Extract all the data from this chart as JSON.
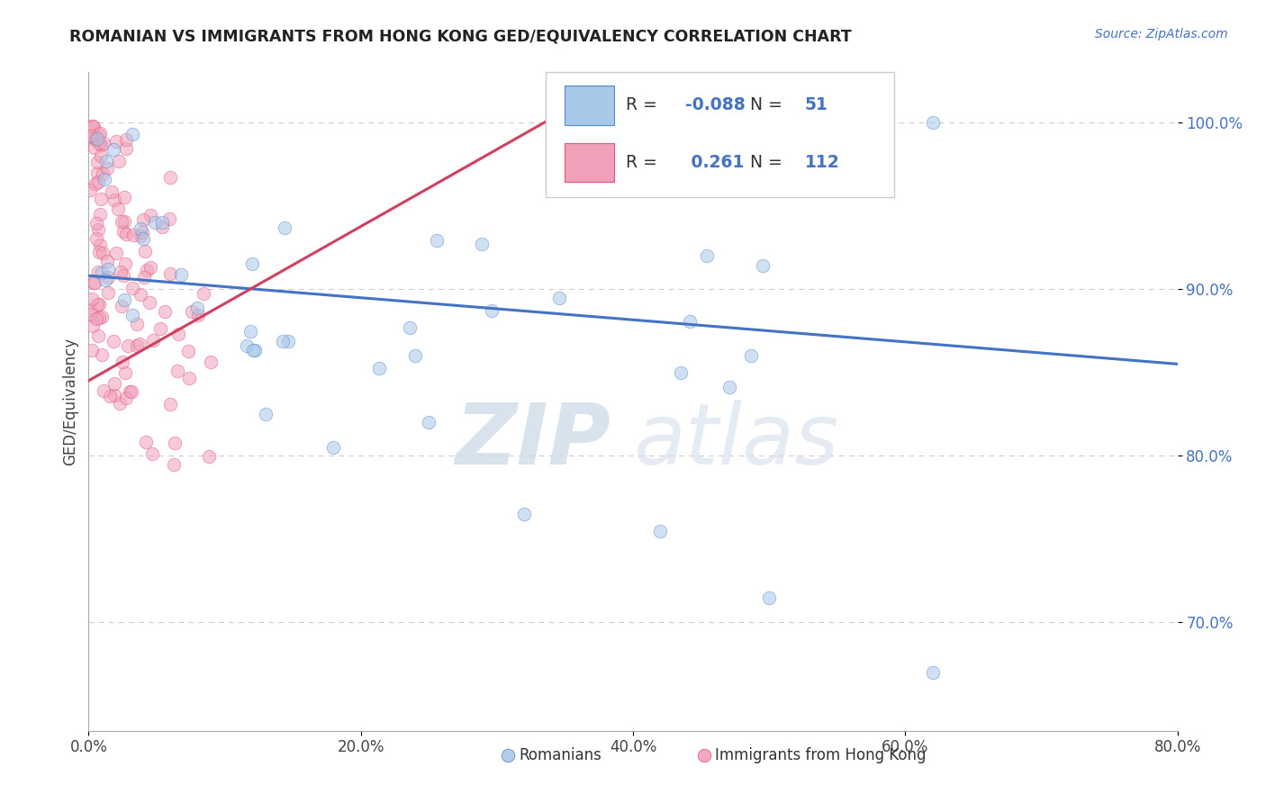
{
  "title": "ROMANIAN VS IMMIGRANTS FROM HONG KONG GED/EQUIVALENCY CORRELATION CHART",
  "source": "Source: ZipAtlas.com",
  "xlabel_ticks": [
    "0.0%",
    "20.0%",
    "40.0%",
    "60.0%",
    "80.0%"
  ],
  "xlabel_tick_vals": [
    0.0,
    20.0,
    40.0,
    60.0,
    80.0
  ],
  "ylabel_ticks": [
    "100.0%",
    "90.0%",
    "80.0%",
    "70.0%"
  ],
  "ylabel_tick_vals": [
    100.0,
    90.0,
    80.0,
    70.0
  ],
  "xmin": 0.0,
  "xmax": 80.0,
  "ymin": 63.5,
  "ymax": 103.0,
  "watermark_zip": "ZIP",
  "watermark_atlas": "atlas",
  "legend_blue_label": "Romanians",
  "legend_pink_label": "Immigrants from Hong Kong",
  "blue_R": "-0.088",
  "blue_N": "51",
  "pink_R": "0.261",
  "pink_N": "112",
  "blue_color": "#A8C8E8",
  "pink_color": "#F0A0B8",
  "blue_edge_color": "#5588CC",
  "pink_edge_color": "#E05878",
  "blue_line_color": "#4472C4",
  "pink_line_color": "#D04060",
  "dot_size": 110,
  "dot_alpha": 0.55,
  "grid_color": "#CCCCCC",
  "background_color": "#FFFFFF",
  "ylabel": "GED/Equivalency",
  "blue_trend_x0": 0.0,
  "blue_trend_y0": 90.8,
  "blue_trend_x1": 80.0,
  "blue_trend_y1": 85.5,
  "pink_trend_x0": 0.0,
  "pink_trend_y0": 84.5,
  "pink_trend_x1": 40.0,
  "pink_trend_y1": 103.0
}
